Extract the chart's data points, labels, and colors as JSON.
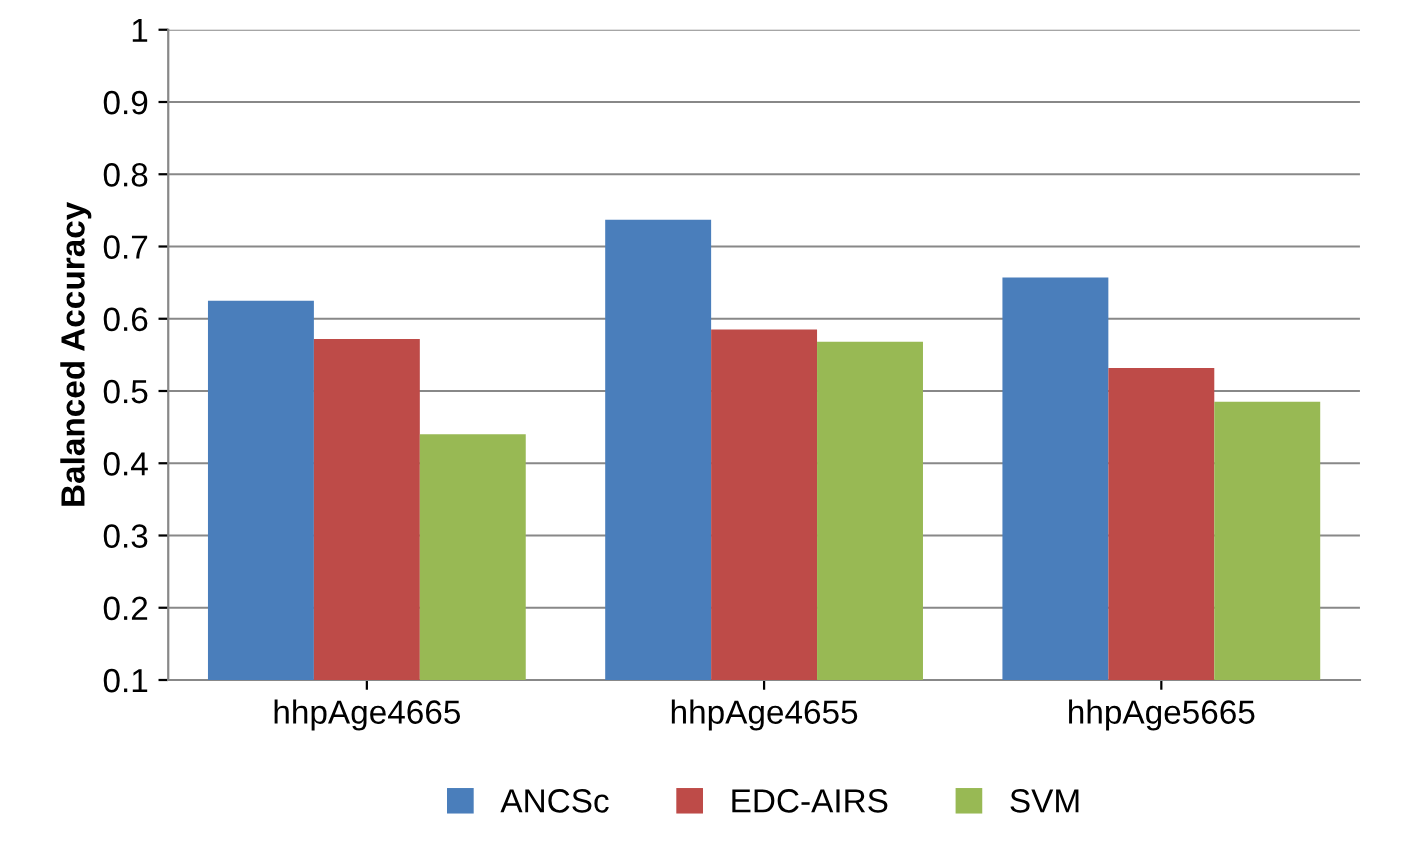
{
  "chart_data": {
    "type": "bar",
    "ylabel": "Balanced Accuracy",
    "categories": [
      "hhpAge4665",
      "hhpAge4655",
      "hhpAge5665"
    ],
    "series": [
      {
        "name": "ANCSc",
        "color": "#4a7ebb",
        "values": [
          0.625,
          0.737,
          0.657
        ]
      },
      {
        "name": "EDC-AIRS",
        "color": "#be4b48",
        "values": [
          0.572,
          0.585,
          0.532
        ]
      },
      {
        "name": "SVM",
        "color": "#98b954",
        "values": [
          0.44,
          0.568,
          0.485
        ]
      }
    ],
    "ylim": [
      0.1,
      1
    ],
    "yticks": [
      0.1,
      0.2,
      0.3,
      0.4,
      0.5,
      0.6,
      0.7,
      0.8,
      0.9,
      1
    ],
    "grid": "y",
    "legend": "bottom"
  }
}
